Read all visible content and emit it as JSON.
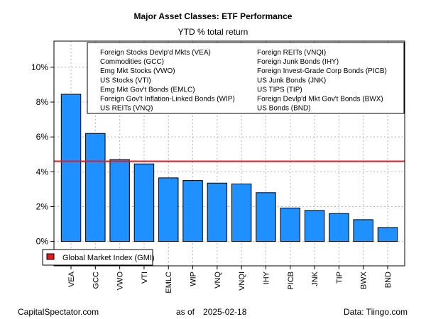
{
  "chart_data": {
    "type": "bar",
    "title": "Major Asset Classes: ETF Performance",
    "subtitle": "YTD % total return",
    "xlabel": "",
    "ylabel": "",
    "ylim": [
      -1.4,
      11.5
    ],
    "y_ticks": [
      0,
      2,
      4,
      6,
      8,
      10
    ],
    "y_tick_labels": [
      "0%",
      "2%",
      "4%",
      "6%",
      "8%",
      "10%"
    ],
    "grid": true,
    "categories": [
      "VEA",
      "GCC",
      "VWO",
      "VTI",
      "EMLC",
      "WIP",
      "VNQ",
      "VNQI",
      "IHY",
      "PICB",
      "JNK",
      "TIP",
      "BWX",
      "BND"
    ],
    "values": [
      8.45,
      6.2,
      4.7,
      4.45,
      3.65,
      3.5,
      3.35,
      3.3,
      2.8,
      1.92,
      1.78,
      1.6,
      1.25,
      0.8
    ],
    "bar_color": "#1e90ff",
    "reference_line": {
      "name": "Global Market Index (GMI)",
      "value": 4.6,
      "color": "#e41a1c"
    },
    "legend_placement": "top-right",
    "legend_entries": [
      "Foreign Stocks Devlp'd Mkts (VEA)",
      "Commodities (GCC)",
      "Emg Mkt Stocks (VWO)",
      "US Stocks (VTI)",
      "Emg Mkt Gov't Bonds (EMLC)",
      "Foreign Gov't Inflation-Linked Bonds (WIP)",
      "US REITs (VNQ)",
      "Foreign REITs (VNQI)",
      "Foreign Junk Bonds (IHY)",
      "Foreign Invest-Grade Corp Bonds (PICB)",
      "US Junk Bonds (JNK)",
      "US TIPS (TIP)",
      "Foreign Devlp'd Mkt Gov't Bonds (BWX)",
      "US Bonds (BND)"
    ]
  },
  "footer": {
    "source_site": "CapitalSpectator.com",
    "as_of_label": "as of",
    "as_of_date": "2025-02-18",
    "data_source": "Data: Tiingo.com"
  }
}
